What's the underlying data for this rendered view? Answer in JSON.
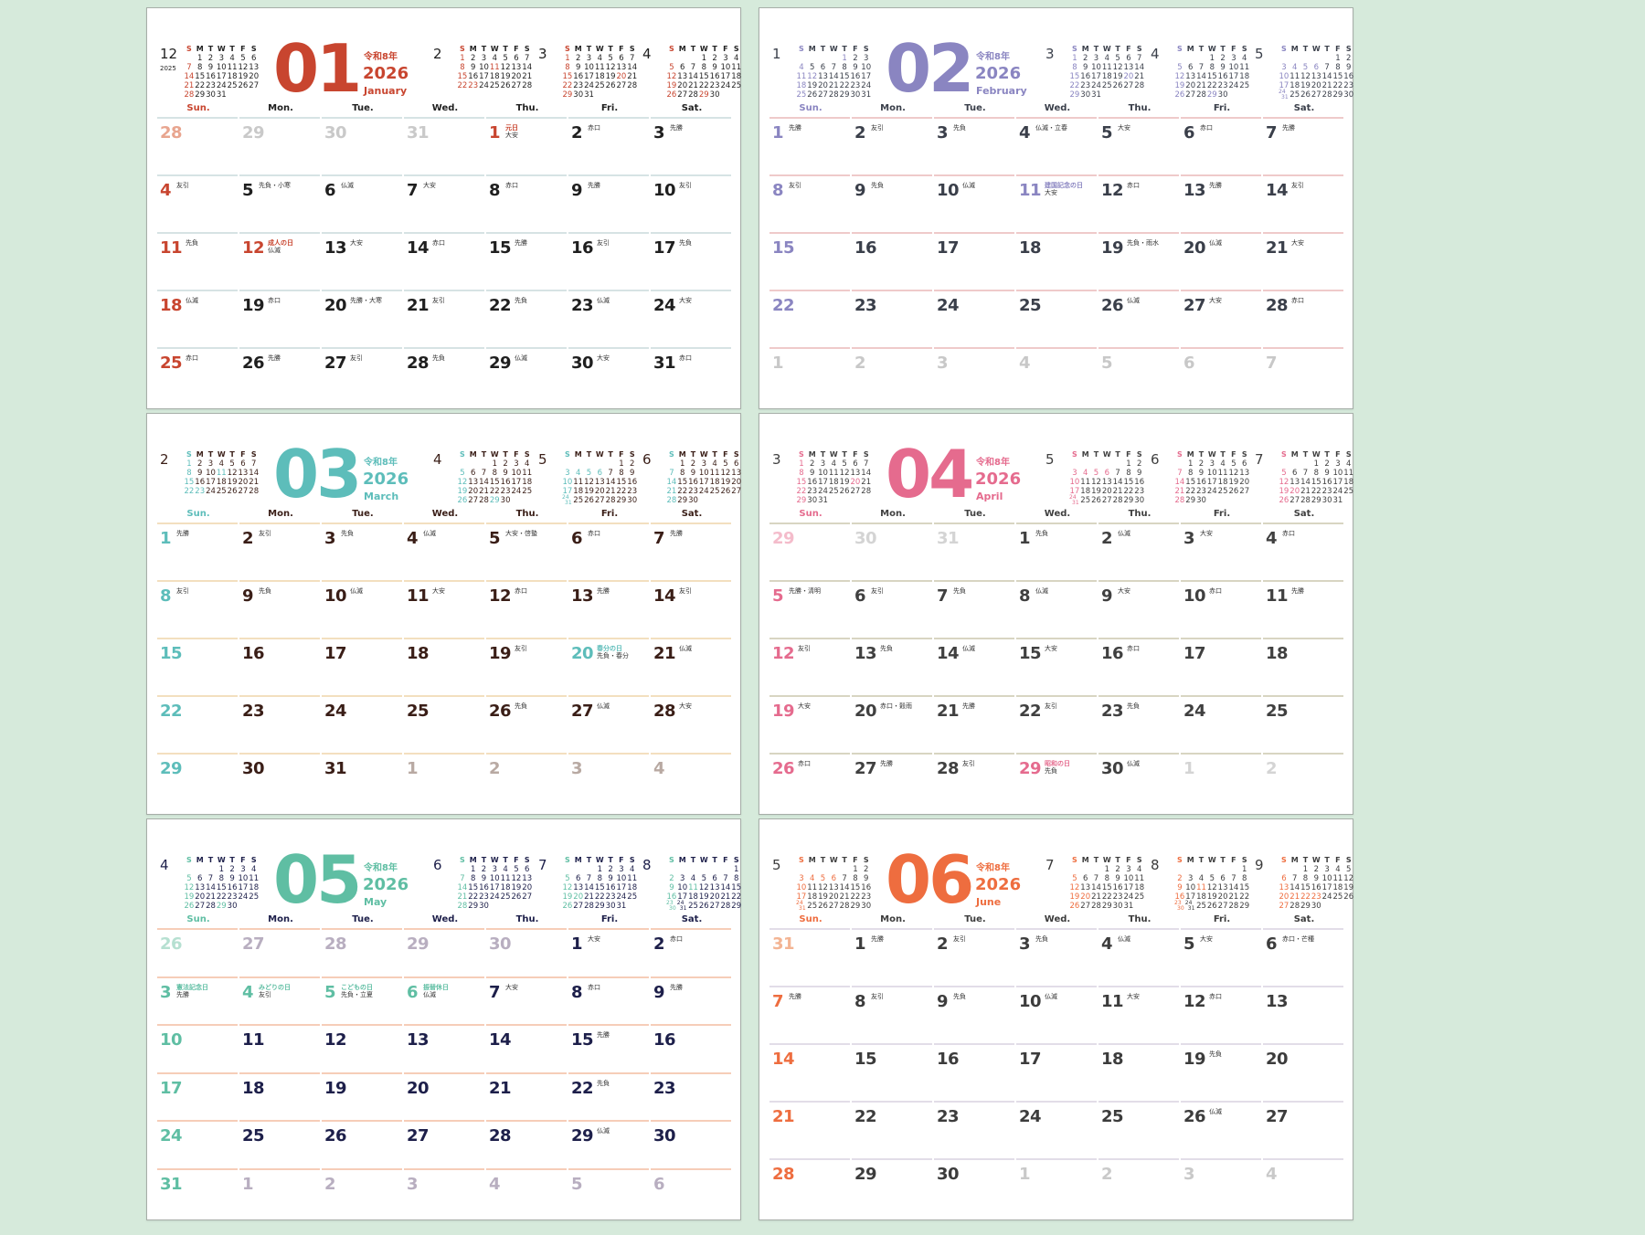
{
  "weekdays": [
    "Sun.",
    "Mon.",
    "Tue.",
    "Wed.",
    "Thu.",
    "Fri.",
    "Sat."
  ],
  "mini_header": [
    "S",
    "M",
    "T",
    "W",
    "T",
    "F",
    "S"
  ],
  "sheets": [
    {
      "month_num": "06",
      "era": "令和8年",
      "year": "2026",
      "name": "June",
      "colors": {
        "accent": "#ee6d3f",
        "text": "#3c3c3c",
        "line": "#e2dde8",
        "grey": "#c9c9c9",
        "faded": "#f3b493"
      },
      "minis": [
        {
          "label": "5",
          "year": 2026,
          "month": 5,
          "red": [
            3,
            4,
            5,
            6
          ]
        },
        {
          "label": "7",
          "year": 2026,
          "month": 7,
          "red": [
            20
          ]
        },
        {
          "label": "8",
          "year": 2026,
          "month": 8,
          "red": [
            11
          ]
        },
        {
          "label": "9",
          "year": 2026,
          "month": 9,
          "red": [
            21,
            22,
            23
          ]
        }
      ],
      "lead": [
        {
          "d": "31"
        }
      ],
      "days": [
        {
          "d": "1",
          "r": "先勝"
        },
        {
          "d": "2",
          "r": "友引"
        },
        {
          "d": "3",
          "r": "先負"
        },
        {
          "d": "4",
          "r": "仏滅"
        },
        {
          "d": "5",
          "r": "大安"
        },
        {
          "d": "6",
          "r": "赤口・芒種"
        },
        {
          "d": "7",
          "r": "先勝"
        },
        {
          "d": "8",
          "r": "友引"
        },
        {
          "d": "9",
          "r": "先負"
        },
        {
          "d": "10",
          "r": "仏滅"
        },
        {
          "d": "11",
          "r": "大安"
        },
        {
          "d": "12",
          "r": "赤口"
        },
        {
          "d": "13"
        },
        {
          "d": "14"
        },
        {
          "d": "15"
        },
        {
          "d": "16"
        },
        {
          "d": "17"
        },
        {
          "d": "18"
        },
        {
          "d": "19",
          "r": "先負"
        },
        {
          "d": "20"
        },
        {
          "d": "21"
        },
        {
          "d": "22"
        },
        {
          "d": "23"
        },
        {
          "d": "24"
        },
        {
          "d": "25"
        },
        {
          "d": "26",
          "r": "仏滅"
        },
        {
          "d": "27"
        },
        {
          "d": "28"
        },
        {
          "d": "29"
        },
        {
          "d": "30"
        }
      ],
      "trail": [
        {
          "d": "1"
        },
        {
          "d": "2"
        },
        {
          "d": "3"
        },
        {
          "d": "4"
        }
      ]
    },
    {
      "month_num": "03",
      "era": "令和8年",
      "year": "2026",
      "name": "March",
      "colors": {
        "accent": "#5dbdba",
        "text": "#3a1e17",
        "line": "#f3dfbf",
        "grey": "#b8a9a2",
        "faded": "#b8a9a2"
      },
      "minis": [
        {
          "label": "2",
          "year": 2026,
          "month": 2,
          "red": [
            11,
            23
          ]
        },
        {
          "label": "4",
          "year": 2026,
          "month": 4,
          "red": [
            29
          ]
        },
        {
          "label": "5",
          "year": 2026,
          "month": 5,
          "red": [
            3,
            4,
            5,
            6
          ]
        },
        {
          "label": "6",
          "year": 2026,
          "month": 6,
          "red": []
        }
      ],
      "lead": [],
      "days": [
        {
          "d": "1",
          "r": "先勝"
        },
        {
          "d": "2",
          "r": "友引"
        },
        {
          "d": "3",
          "r": "先負"
        },
        {
          "d": "4",
          "r": "仏滅"
        },
        {
          "d": "5",
          "r": "大安・啓蟄"
        },
        {
          "d": "6",
          "r": "赤口"
        },
        {
          "d": "7",
          "r": "先勝"
        },
        {
          "d": "8",
          "r": "友引"
        },
        {
          "d": "9",
          "r": "先負"
        },
        {
          "d": "10",
          "r": "仏滅"
        },
        {
          "d": "11",
          "r": "大安"
        },
        {
          "d": "12",
          "r": "赤口"
        },
        {
          "d": "13",
          "r": "先勝"
        },
        {
          "d": "14",
          "r": "友引"
        },
        {
          "d": "15"
        },
        {
          "d": "16"
        },
        {
          "d": "17"
        },
        {
          "d": "18"
        },
        {
          "d": "19",
          "r": "友引"
        },
        {
          "d": "20",
          "h": "春分の日",
          "r": "先負・春分"
        },
        {
          "d": "21",
          "r": "仏滅"
        },
        {
          "d": "22"
        },
        {
          "d": "23"
        },
        {
          "d": "24"
        },
        {
          "d": "25"
        },
        {
          "d": "26",
          "r": "先負"
        },
        {
          "d": "27",
          "r": "仏滅"
        },
        {
          "d": "28",
          "r": "大安"
        },
        {
          "d": "29"
        },
        {
          "d": "30"
        },
        {
          "d": "31"
        }
      ],
      "trail": [
        {
          "d": "1"
        },
        {
          "d": "2"
        },
        {
          "d": "3"
        },
        {
          "d": "4"
        }
      ]
    },
    {
      "month_num": "05",
      "era": "令和8年",
      "year": "2026",
      "name": "May",
      "colors": {
        "accent": "#5fbea3",
        "text": "#1d1f4a",
        "line": "#f6cdb8",
        "grey": "#b8aec0",
        "faded": "#b6e0d1"
      },
      "minis": [
        {
          "label": "4",
          "year": 2026,
          "month": 4,
          "red": [
            29
          ]
        },
        {
          "label": "6",
          "year": 2026,
          "month": 6,
          "red": []
        },
        {
          "label": "7",
          "year": 2026,
          "month": 7,
          "red": [
            20
          ]
        },
        {
          "label": "8",
          "year": 2026,
          "month": 8,
          "red": [
            11
          ]
        }
      ],
      "lead": [
        {
          "d": "26"
        },
        {
          "d": "27"
        },
        {
          "d": "28"
        },
        {
          "d": "29"
        },
        {
          "d": "30"
        }
      ],
      "days": [
        {
          "d": "1",
          "r": "大安"
        },
        {
          "d": "2",
          "r": "赤口"
        },
        {
          "d": "3",
          "h": "憲法記念日",
          "r": "先勝"
        },
        {
          "d": "4",
          "h": "みどりの日",
          "r": "友引"
        },
        {
          "d": "5",
          "h": "こどもの日",
          "r": "先負・立夏"
        },
        {
          "d": "6",
          "h": "振替休日",
          "r": "仏滅"
        },
        {
          "d": "7",
          "r": "大安"
        },
        {
          "d": "8",
          "r": "赤口"
        },
        {
          "d": "9",
          "r": "先勝"
        },
        {
          "d": "10"
        },
        {
          "d": "11"
        },
        {
          "d": "12"
        },
        {
          "d": "13"
        },
        {
          "d": "14"
        },
        {
          "d": "15",
          "r": "先勝"
        },
        {
          "d": "16"
        },
        {
          "d": "17"
        },
        {
          "d": "18"
        },
        {
          "d": "19"
        },
        {
          "d": "20"
        },
        {
          "d": "21"
        },
        {
          "d": "22",
          "r": "先負"
        },
        {
          "d": "23"
        },
        {
          "d": "24"
        },
        {
          "d": "25"
        },
        {
          "d": "26"
        },
        {
          "d": "27"
        },
        {
          "d": "28"
        },
        {
          "d": "29",
          "r": "仏滅"
        },
        {
          "d": "30"
        },
        {
          "d": "31"
        }
      ],
      "trail": [
        {
          "d": "1"
        },
        {
          "d": "2"
        },
        {
          "d": "3"
        },
        {
          "d": "4"
        },
        {
          "d": "5"
        },
        {
          "d": "6"
        }
      ]
    },
    {
      "month_num": "02",
      "era": "令和8年",
      "year": "2026",
      "name": "February",
      "colors": {
        "accent": "#8a85c1",
        "text": "#3a3f4a",
        "line": "#efcaca",
        "grey": "#c8c8c8",
        "faded": "#c8c8c8"
      },
      "minis": [
        {
          "label": "1",
          "year": 2026,
          "month": 1,
          "red": [
            1,
            12
          ]
        },
        {
          "label": "3",
          "year": 2026,
          "month": 3,
          "red": [
            20
          ]
        },
        {
          "label": "4",
          "year": 2026,
          "month": 4,
          "red": [
            29
          ]
        },
        {
          "label": "5",
          "year": 2026,
          "month": 5,
          "red": [
            3,
            4,
            5,
            6
          ]
        }
      ],
      "lead": [],
      "days": [
        {
          "d": "1",
          "r": "先勝"
        },
        {
          "d": "2",
          "r": "友引"
        },
        {
          "d": "3",
          "r": "先負"
        },
        {
          "d": "4",
          "r": "仏滅・立春"
        },
        {
          "d": "5",
          "r": "大安"
        },
        {
          "d": "6",
          "r": "赤口"
        },
        {
          "d": "7",
          "r": "先勝"
        },
        {
          "d": "8",
          "r": "友引"
        },
        {
          "d": "9",
          "r": "先負"
        },
        {
          "d": "10",
          "r": "仏滅"
        },
        {
          "d": "11",
          "h": "建国記念の日",
          "r": "大安"
        },
        {
          "d": "12",
          "r": "赤口"
        },
        {
          "d": "13",
          "r": "先勝"
        },
        {
          "d": "14",
          "r": "友引"
        },
        {
          "d": "15"
        },
        {
          "d": "16"
        },
        {
          "d": "17"
        },
        {
          "d": "18"
        },
        {
          "d": "19",
          "r": "先負・雨水"
        },
        {
          "d": "20",
          "r": "仏滅"
        },
        {
          "d": "21",
          "r": "大安"
        },
        {
          "d": "22"
        },
        {
          "d": "23"
        },
        {
          "d": "24"
        },
        {
          "d": "25"
        },
        {
          "d": "26",
          "r": "仏滅"
        },
        {
          "d": "27",
          "r": "大安"
        },
        {
          "d": "28",
          "r": "赤口"
        }
      ],
      "trail": [
        {
          "d": "1"
        },
        {
          "d": "2"
        },
        {
          "d": "3"
        },
        {
          "d": "4"
        },
        {
          "d": "5"
        },
        {
          "d": "6"
        },
        {
          "d": "7"
        }
      ]
    },
    {
      "month_num": "04",
      "era": "令和8年",
      "year": "2026",
      "name": "April",
      "colors": {
        "accent": "#e56b8e",
        "text": "#404040",
        "line": "#d8d5c2",
        "grey": "#d4d4d4",
        "faded": "#f4bccb"
      },
      "minis": [
        {
          "label": "3",
          "year": 2026,
          "month": 3,
          "red": [
            20
          ]
        },
        {
          "label": "5",
          "year": 2026,
          "month": 5,
          "red": [
            3,
            4,
            5,
            6
          ]
        },
        {
          "label": "6",
          "year": 2026,
          "month": 6,
          "red": []
        },
        {
          "label": "7",
          "year": 2026,
          "month": 7,
          "red": [
            20
          ]
        }
      ],
      "lead": [
        {
          "d": "29"
        },
        {
          "d": "30"
        },
        {
          "d": "31"
        }
      ],
      "days": [
        {
          "d": "1",
          "r": "先負"
        },
        {
          "d": "2",
          "r": "仏滅"
        },
        {
          "d": "3",
          "r": "大安"
        },
        {
          "d": "4",
          "r": "赤口"
        },
        {
          "d": "5",
          "r": "先勝・清明"
        },
        {
          "d": "6",
          "r": "友引"
        },
        {
          "d": "7",
          "r": "先負"
        },
        {
          "d": "8",
          "r": "仏滅"
        },
        {
          "d": "9",
          "r": "大安"
        },
        {
          "d": "10",
          "r": "赤口"
        },
        {
          "d": "11",
          "r": "先勝"
        },
        {
          "d": "12",
          "r": "友引"
        },
        {
          "d": "13",
          "r": "先負"
        },
        {
          "d": "14",
          "r": "仏滅"
        },
        {
          "d": "15",
          "r": "大安"
        },
        {
          "d": "16",
          "r": "赤口"
        },
        {
          "d": "17"
        },
        {
          "d": "18"
        },
        {
          "d": "19",
          "r": "大安"
        },
        {
          "d": "20",
          "r": "赤口・穀雨"
        },
        {
          "d": "21",
          "r": "先勝"
        },
        {
          "d": "22",
          "r": "友引"
        },
        {
          "d": "23",
          "r": "先負"
        },
        {
          "d": "24"
        },
        {
          "d": "25"
        },
        {
          "d": "26",
          "r": "赤口"
        },
        {
          "d": "27",
          "r": "先勝"
        },
        {
          "d": "28",
          "r": "友引"
        },
        {
          "d": "29",
          "h": "昭和の日",
          "r": "先負"
        },
        {
          "d": "30",
          "r": "仏滅"
        }
      ],
      "trail": [
        {
          "d": "1"
        },
        {
          "d": "2"
        }
      ]
    },
    {
      "month_num": "01",
      "era": "令和8年",
      "year": "2026",
      "name": "January",
      "colors": {
        "accent": "#c8452f",
        "text": "#1f1f1f",
        "line": "#d6e3e4",
        "grey": "#c9c9c9",
        "faded": "#e8a58f"
      },
      "minis": [
        {
          "label": "12",
          "year_label": "2025",
          "year": 2025,
          "month": 12,
          "red": []
        },
        {
          "label": "2",
          "year": 2026,
          "month": 2,
          "red": [
            11,
            23
          ]
        },
        {
          "label": "3",
          "year": 2026,
          "month": 3,
          "red": [
            20
          ]
        },
        {
          "label": "4",
          "year": 2026,
          "month": 4,
          "red": [
            29
          ]
        }
      ],
      "lead": [
        {
          "d": "28"
        },
        {
          "d": "29"
        },
        {
          "d": "30"
        },
        {
          "d": "31"
        }
      ],
      "days": [
        {
          "d": "1",
          "h": "元日",
          "r": "大安"
        },
        {
          "d": "2",
          "r": "赤口"
        },
        {
          "d": "3",
          "r": "先勝"
        },
        {
          "d": "4",
          "r": "友引"
        },
        {
          "d": "5",
          "r": "先負・小寒"
        },
        {
          "d": "6",
          "r": "仏滅"
        },
        {
          "d": "7",
          "r": "大安"
        },
        {
          "d": "8",
          "r": "赤口"
        },
        {
          "d": "9",
          "r": "先勝"
        },
        {
          "d": "10",
          "r": "友引"
        },
        {
          "d": "11",
          "r": "先負"
        },
        {
          "d": "12",
          "h": "成人の日",
          "r": "仏滅"
        },
        {
          "d": "13",
          "r": "大安"
        },
        {
          "d": "14",
          "r": "赤口"
        },
        {
          "d": "15",
          "r": "先勝"
        },
        {
          "d": "16",
          "r": "友引"
        },
        {
          "d": "17",
          "r": "先負"
        },
        {
          "d": "18",
          "r": "仏滅"
        },
        {
          "d": "19",
          "r": "赤口"
        },
        {
          "d": "20",
          "r": "先勝・大寒"
        },
        {
          "d": "21",
          "r": "友引"
        },
        {
          "d": "22",
          "r": "先負"
        },
        {
          "d": "23",
          "r": "仏滅"
        },
        {
          "d": "24",
          "r": "大安"
        },
        {
          "d": "25",
          "r": "赤口"
        },
        {
          "d": "26",
          "r": "先勝"
        },
        {
          "d": "27",
          "r": "友引"
        },
        {
          "d": "28",
          "r": "先負"
        },
        {
          "d": "29",
          "r": "仏滅"
        },
        {
          "d": "30",
          "r": "大安"
        },
        {
          "d": "31",
          "r": "赤口"
        }
      ],
      "trail": []
    }
  ]
}
